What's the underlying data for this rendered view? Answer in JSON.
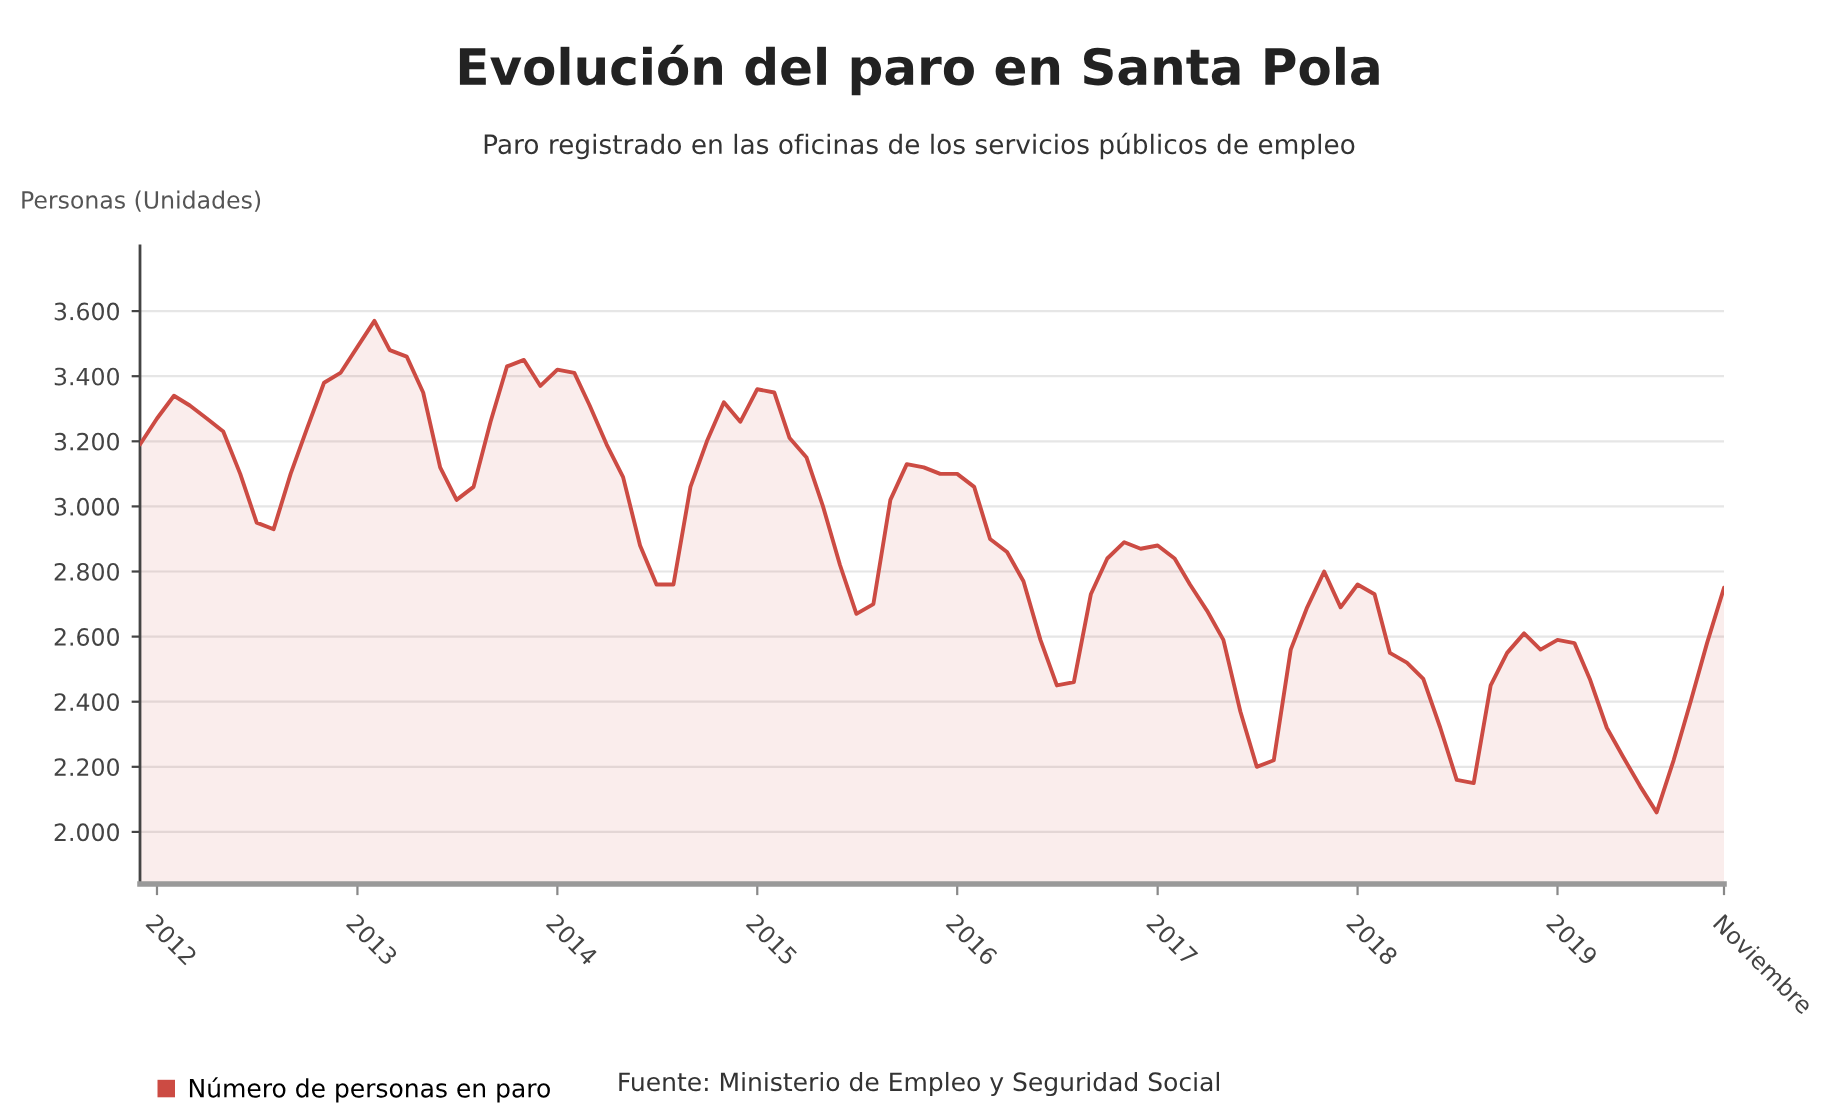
{
  "chart_data": {
    "type": "area",
    "title": "Evolución del paro en Santa Pola",
    "subtitle": "Paro registrado en las oficinas de los servicios públicos de empleo",
    "ylabel": "Personas (Unidades)",
    "x": [
      "2011-12",
      "2012-01",
      "2012-02",
      "2012-03",
      "2012-04",
      "2012-05",
      "2012-06",
      "2012-07",
      "2012-08",
      "2012-09",
      "2012-10",
      "2012-11",
      "2012-12",
      "2013-01",
      "2013-02",
      "2013-03",
      "2013-04",
      "2013-05",
      "2013-06",
      "2013-07",
      "2013-08",
      "2013-09",
      "2013-10",
      "2013-11",
      "2013-12",
      "2014-01",
      "2014-02",
      "2014-03",
      "2014-04",
      "2014-05",
      "2014-06",
      "2014-07",
      "2014-08",
      "2014-09",
      "2014-10",
      "2014-11",
      "2014-12",
      "2015-01",
      "2015-02",
      "2015-03",
      "2015-04",
      "2015-05",
      "2015-06",
      "2015-07",
      "2015-08",
      "2015-09",
      "2015-10",
      "2015-11",
      "2015-12",
      "2016-01",
      "2016-02",
      "2016-03",
      "2016-04",
      "2016-05",
      "2016-06",
      "2016-07",
      "2016-08",
      "2016-09",
      "2016-10",
      "2016-11",
      "2016-12",
      "2017-01",
      "2017-02",
      "2017-03",
      "2017-04",
      "2017-05",
      "2017-06",
      "2017-07",
      "2017-08",
      "2017-09",
      "2017-10",
      "2017-11",
      "2017-12",
      "2018-01",
      "2018-02",
      "2018-03",
      "2018-04",
      "2018-05",
      "2018-06",
      "2018-07",
      "2018-08",
      "2018-09",
      "2018-10",
      "2018-11",
      "2018-12",
      "2019-01",
      "2019-02",
      "2019-03",
      "2019-04",
      "2019-05",
      "2019-06",
      "2019-07",
      "2019-08",
      "2019-09",
      "2019-10",
      "2019-11"
    ],
    "series": [
      {
        "name": "Número de personas en paro",
        "color": "#cc4b43",
        "values": [
          3190,
          3270,
          3340,
          3310,
          3270,
          3230,
          3100,
          2950,
          2930,
          3100,
          3240,
          3380,
          3410,
          3490,
          3570,
          3480,
          3460,
          3350,
          3120,
          3020,
          3060,
          3260,
          3430,
          3450,
          3370,
          3420,
          3410,
          3310,
          3190,
          3090,
          2880,
          2760,
          2760,
          3060,
          3200,
          3320,
          3260,
          3360,
          3350,
          3210,
          3150,
          3000,
          2820,
          2670,
          2700,
          3020,
          3130,
          3120,
          3100,
          3100,
          3060,
          2900,
          2860,
          2770,
          2590,
          2450,
          2460,
          2730,
          2840,
          2890,
          2870,
          2880,
          2840,
          2760,
          2680,
          2590,
          2370,
          2200,
          2220,
          2560,
          2690,
          2800,
          2690,
          2760,
          2730,
          2550,
          2520,
          2470,
          2320,
          2160,
          2150,
          2450,
          2550,
          2610,
          2560,
          2590,
          2580,
          2470,
          2320,
          2230,
          2140,
          2060,
          2220,
          2400,
          2580,
          2750
        ]
      }
    ],
    "xlim": [
      "2011-12",
      "2019-11"
    ],
    "xticks": [
      {
        "value": "2012-01",
        "label": "2012"
      },
      {
        "value": "2013-01",
        "label": "2013"
      },
      {
        "value": "2014-01",
        "label": "2014"
      },
      {
        "value": "2015-01",
        "label": "2015"
      },
      {
        "value": "2016-01",
        "label": "2016"
      },
      {
        "value": "2017-01",
        "label": "2017"
      },
      {
        "value": "2018-01",
        "label": "2018"
      },
      {
        "value": "2019-01",
        "label": "2019"
      },
      {
        "value": "2019-11",
        "label": "Noviembre"
      }
    ],
    "ylim": [
      1840,
      3800
    ],
    "yticks": [
      {
        "value": 2000,
        "label": "2.000"
      },
      {
        "value": 2200,
        "label": "2.200"
      },
      {
        "value": 2400,
        "label": "2.400"
      },
      {
        "value": 2600,
        "label": "2.600"
      },
      {
        "value": 2800,
        "label": "2.800"
      },
      {
        "value": 3000,
        "label": "3.000"
      },
      {
        "value": 3200,
        "label": "3.200"
      },
      {
        "value": 3400,
        "label": "3.400"
      },
      {
        "value": 3600,
        "label": "3.600"
      }
    ],
    "grid": "y",
    "legend": "bottom",
    "annotations": [
      "Fuente: Ministerio de Empleo y Seguridad Social"
    ]
  }
}
